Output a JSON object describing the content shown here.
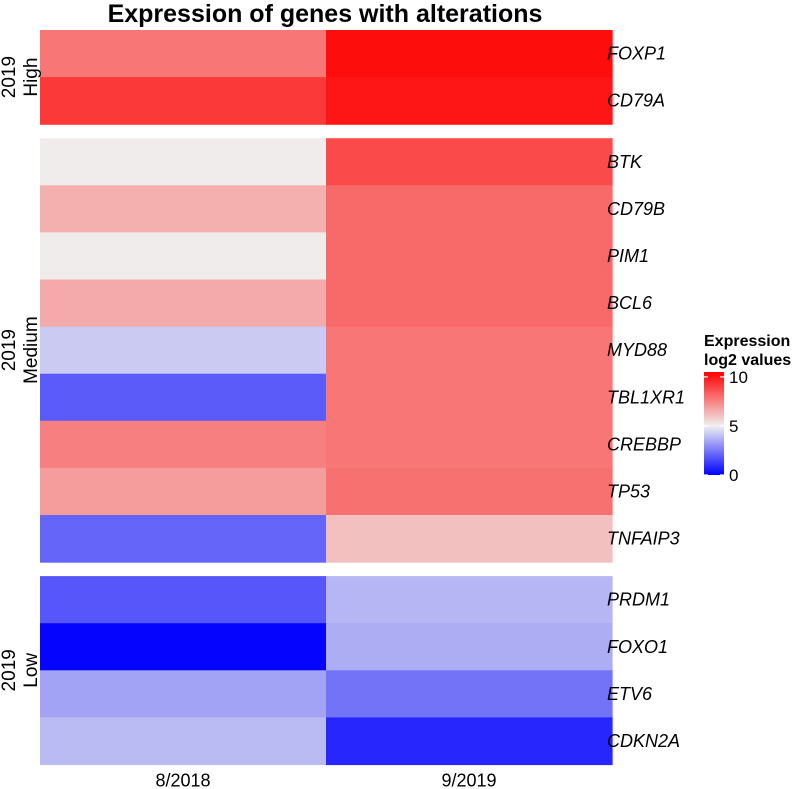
{
  "chart_data": {
    "type": "heatmap",
    "title": "Expression of genes with alterations",
    "columns": [
      "8/2018",
      "9/2019"
    ],
    "groups": [
      {
        "label_line1": "2019",
        "label_line2": "High",
        "rows": [
          {
            "gene": "FOXP1",
            "values": [
              7.8,
              10.2
            ]
          },
          {
            "gene": "CD79A",
            "values": [
              9.2,
              10.0
            ]
          }
        ]
      },
      {
        "label_line1": "2019",
        "label_line2": "Medium",
        "rows": [
          {
            "gene": "BTK",
            "values": [
              5.1,
              8.8
            ]
          },
          {
            "gene": "CD79B",
            "values": [
              6.5,
              8.1
            ]
          },
          {
            "gene": "PIM1",
            "values": [
              5.1,
              8.1
            ]
          },
          {
            "gene": "BCL6",
            "values": [
              6.6,
              8.1
            ]
          },
          {
            "gene": "MYD88",
            "values": [
              4.2,
              7.8
            ]
          },
          {
            "gene": "TBL1XR1",
            "values": [
              1.9,
              7.8
            ]
          },
          {
            "gene": "CREBBP",
            "values": [
              7.6,
              7.8
            ]
          },
          {
            "gene": "TP53",
            "values": [
              6.9,
              7.9
            ]
          },
          {
            "gene": "TNFAIP3",
            "values": [
              2.1,
              6.1
            ]
          }
        ]
      },
      {
        "label_line1": "2019",
        "label_line2": "Low",
        "rows": [
          {
            "gene": "PRDM1",
            "values": [
              1.8,
              3.8
            ]
          },
          {
            "gene": "FOXO1",
            "values": [
              0.1,
              3.6
            ]
          },
          {
            "gene": "ETV6",
            "values": [
              3.4,
              2.4
            ]
          },
          {
            "gene": "CDKN2A",
            "values": [
              3.9,
              0.8
            ]
          }
        ]
      }
    ],
    "legend": {
      "title_line1": "Expression",
      "title_line2": "log2 values",
      "ticks": [
        0,
        5,
        10
      ],
      "range": [
        0,
        10.5
      ],
      "colors": {
        "low": "#0000ff",
        "mid": "#f0f0f0",
        "high": "#ff0000"
      },
      "position": "right"
    }
  }
}
